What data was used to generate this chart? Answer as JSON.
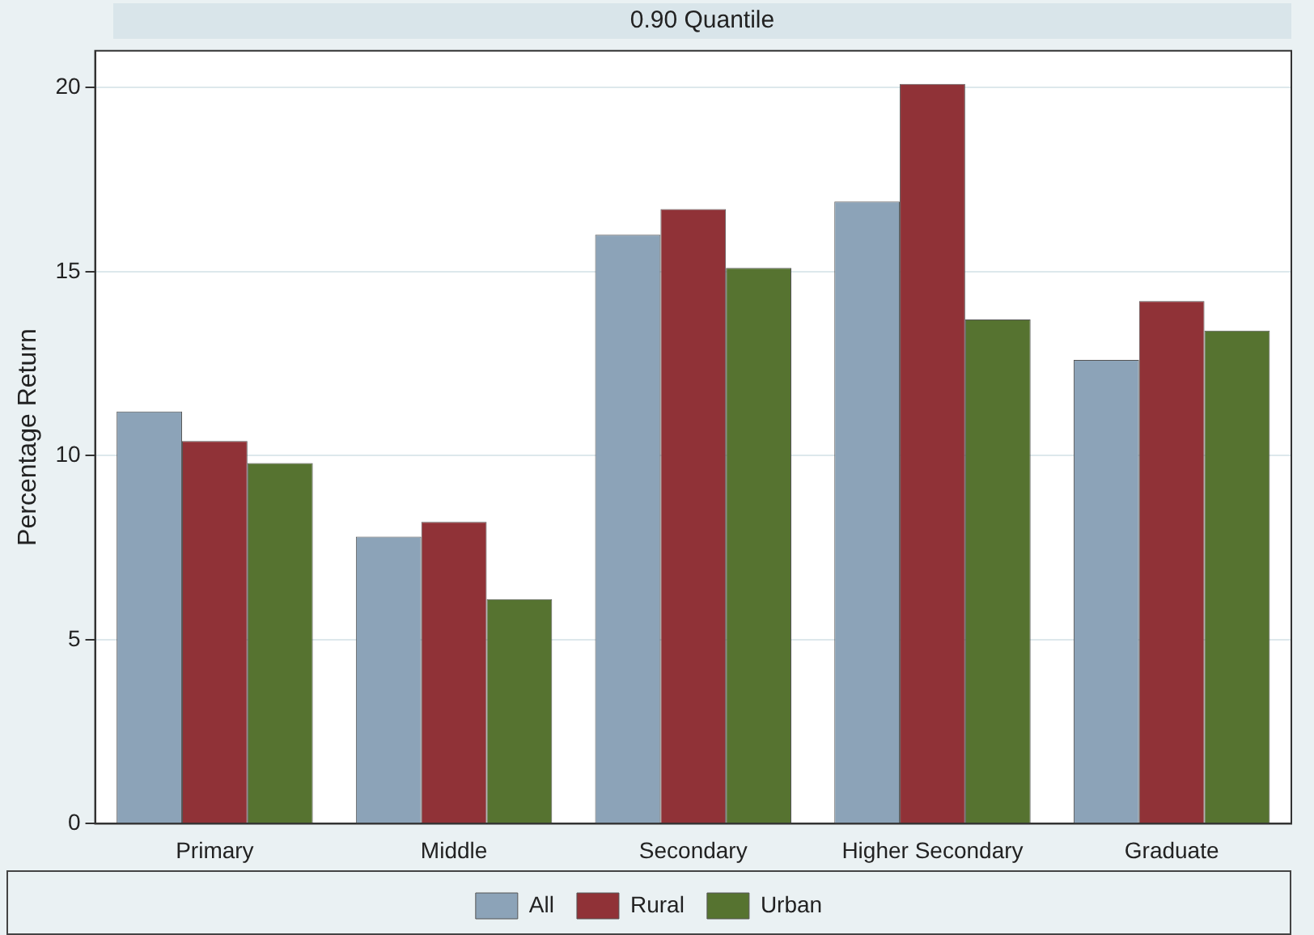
{
  "chart_data": {
    "type": "bar",
    "title": "0.90 Quantile",
    "ylabel": "Percentage Return",
    "categories": [
      "Primary",
      "Middle",
      "Secondary",
      "Higher Secondary",
      "Graduate"
    ],
    "series": [
      {
        "name": "All",
        "color": "#8ca3b8",
        "values": [
          11.2,
          7.8,
          16.0,
          16.9,
          12.6
        ]
      },
      {
        "name": "Rural",
        "color": "#903237",
        "values": [
          10.4,
          8.2,
          16.7,
          20.1,
          14.2
        ]
      },
      {
        "name": "Urban",
        "color": "#567330",
        "values": [
          9.8,
          6.1,
          15.1,
          13.7,
          13.4
        ]
      }
    ],
    "ylim": [
      0,
      21
    ],
    "yticks": [
      0,
      5,
      10,
      15,
      20
    ],
    "grid": "y",
    "legend": "bottom"
  }
}
